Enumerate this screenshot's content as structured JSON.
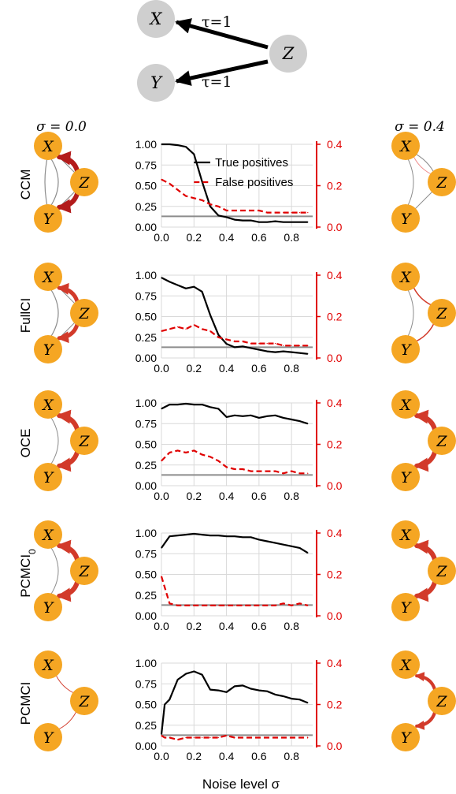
{
  "top_graph": {
    "nodes": [
      "X",
      "Y",
      "Z"
    ],
    "edges": [
      {
        "from": "Z",
        "to": "X",
        "label": "τ=1"
      },
      {
        "from": "Z",
        "to": "Y",
        "label": "τ=1"
      }
    ]
  },
  "col_labels": {
    "left": "σ = 0.0",
    "right": "σ = 0.4"
  },
  "xlabel": "Noise level σ",
  "legend": {
    "tp": "True positives",
    "fp": "False positives"
  },
  "colors": {
    "tp": "#000000",
    "fp": "#e00000",
    "node": "#f5a623",
    "arrow_dark": "#b31b1b",
    "arrow": "#d23a2a",
    "baseline": "#8c8c8c"
  },
  "chart_data": [
    {
      "type": "line",
      "method": "CCM",
      "x": [
        0.0,
        0.05,
        0.1,
        0.15,
        0.2,
        0.25,
        0.3,
        0.35,
        0.4,
        0.45,
        0.5,
        0.55,
        0.6,
        0.65,
        0.7,
        0.75,
        0.8,
        0.85,
        0.9
      ],
      "series": [
        {
          "name": "True positives",
          "axis": "left",
          "values": [
            1.0,
            1.0,
            0.99,
            0.97,
            0.88,
            0.55,
            0.25,
            0.14,
            0.12,
            0.09,
            0.08,
            0.08,
            0.06,
            0.06,
            0.07,
            0.06,
            0.06,
            0.06,
            0.06
          ]
        },
        {
          "name": "False positives",
          "axis": "right",
          "values": [
            0.23,
            0.21,
            0.18,
            0.15,
            0.14,
            0.13,
            0.11,
            0.1,
            0.08,
            0.08,
            0.08,
            0.08,
            0.08,
            0.07,
            0.07,
            0.07,
            0.07,
            0.07,
            0.07
          ]
        }
      ],
      "baseline": 0.13,
      "yticks_left": [
        "0.00",
        "0.25",
        "0.50",
        "0.75",
        "1.00"
      ],
      "ylim_left": [
        0,
        1
      ],
      "yticks_right": [
        "0.0",
        "0.2",
        "0.4"
      ],
      "ylim_right": [
        0,
        0.4
      ],
      "legend": "top-right"
    },
    {
      "type": "line",
      "method": "FullCI",
      "x": [
        0.0,
        0.05,
        0.1,
        0.15,
        0.2,
        0.25,
        0.3,
        0.35,
        0.4,
        0.45,
        0.5,
        0.55,
        0.6,
        0.65,
        0.7,
        0.75,
        0.8,
        0.85,
        0.9
      ],
      "series": [
        {
          "name": "True positives",
          "axis": "left",
          "values": [
            0.97,
            0.92,
            0.88,
            0.84,
            0.86,
            0.8,
            0.52,
            0.28,
            0.17,
            0.13,
            0.14,
            0.12,
            0.1,
            0.08,
            0.07,
            0.08,
            0.07,
            0.06,
            0.05
          ]
        },
        {
          "name": "False positives",
          "axis": "right",
          "values": [
            0.13,
            0.14,
            0.15,
            0.14,
            0.16,
            0.14,
            0.13,
            0.1,
            0.09,
            0.08,
            0.08,
            0.07,
            0.07,
            0.07,
            0.07,
            0.06,
            0.06,
            0.06,
            0.06
          ]
        }
      ],
      "baseline": 0.13,
      "yticks_left": [
        "0.00",
        "0.25",
        "0.50",
        "0.75",
        "1.00"
      ],
      "ylim_left": [
        0,
        1
      ],
      "yticks_right": [
        "0.0",
        "0.2",
        "0.4"
      ],
      "ylim_right": [
        0,
        0.4
      ]
    },
    {
      "type": "line",
      "method": "OCE",
      "x": [
        0.0,
        0.05,
        0.1,
        0.15,
        0.2,
        0.25,
        0.3,
        0.35,
        0.4,
        0.45,
        0.5,
        0.55,
        0.6,
        0.65,
        0.7,
        0.75,
        0.8,
        0.85,
        0.9
      ],
      "series": [
        {
          "name": "True positives",
          "axis": "left",
          "values": [
            0.93,
            0.98,
            0.98,
            0.99,
            0.98,
            0.98,
            0.95,
            0.93,
            0.83,
            0.85,
            0.84,
            0.85,
            0.82,
            0.84,
            0.85,
            0.82,
            0.8,
            0.78,
            0.75
          ]
        },
        {
          "name": "False positives",
          "axis": "right",
          "values": [
            0.12,
            0.16,
            0.17,
            0.16,
            0.17,
            0.15,
            0.14,
            0.12,
            0.09,
            0.08,
            0.08,
            0.07,
            0.07,
            0.07,
            0.07,
            0.06,
            0.07,
            0.06,
            0.06
          ]
        }
      ],
      "baseline": 0.13,
      "yticks_left": [
        "0.00",
        "0.25",
        "0.50",
        "0.75",
        "1.00"
      ],
      "ylim_left": [
        0,
        1
      ],
      "yticks_right": [
        "0.0",
        "0.2",
        "0.4"
      ],
      "ylim_right": [
        0,
        0.4
      ]
    },
    {
      "type": "line",
      "method": "PCMCI0",
      "x": [
        0.0,
        0.05,
        0.1,
        0.15,
        0.2,
        0.25,
        0.3,
        0.35,
        0.4,
        0.45,
        0.5,
        0.55,
        0.6,
        0.65,
        0.7,
        0.75,
        0.8,
        0.85,
        0.9
      ],
      "series": [
        {
          "name": "True positives",
          "axis": "left",
          "values": [
            0.82,
            0.96,
            0.97,
            0.98,
            0.99,
            0.98,
            0.97,
            0.97,
            0.96,
            0.96,
            0.95,
            0.95,
            0.92,
            0.9,
            0.88,
            0.86,
            0.84,
            0.82,
            0.76
          ]
        },
        {
          "name": "False positives",
          "axis": "right",
          "values": [
            0.19,
            0.06,
            0.05,
            0.05,
            0.05,
            0.05,
            0.05,
            0.05,
            0.05,
            0.05,
            0.05,
            0.05,
            0.05,
            0.05,
            0.05,
            0.06,
            0.05,
            0.06,
            0.05
          ]
        }
      ],
      "baseline": 0.13,
      "yticks_left": [
        "0.00",
        "0.25",
        "0.50",
        "0.75",
        "1.00"
      ],
      "ylim_left": [
        0,
        1
      ],
      "yticks_right": [
        "0.0",
        "0.2",
        "0.4"
      ],
      "ylim_right": [
        0,
        0.4
      ]
    },
    {
      "type": "line",
      "method": "PCMCI",
      "x": [
        0.0,
        0.02,
        0.05,
        0.1,
        0.15,
        0.2,
        0.25,
        0.3,
        0.35,
        0.4,
        0.45,
        0.5,
        0.55,
        0.6,
        0.65,
        0.7,
        0.75,
        0.8,
        0.85,
        0.9
      ],
      "series": [
        {
          "name": "True positives",
          "axis": "left",
          "values": [
            0.14,
            0.5,
            0.56,
            0.8,
            0.87,
            0.9,
            0.86,
            0.68,
            0.67,
            0.65,
            0.72,
            0.73,
            0.69,
            0.67,
            0.66,
            0.62,
            0.6,
            0.57,
            0.56,
            0.52
          ]
        },
        {
          "name": "False positives",
          "axis": "right",
          "values": [
            0.05,
            0.04,
            0.04,
            0.03,
            0.04,
            0.04,
            0.04,
            0.04,
            0.04,
            0.05,
            0.04,
            0.04,
            0.04,
            0.04,
            0.04,
            0.04,
            0.04,
            0.04,
            0.04,
            0.04
          ]
        }
      ],
      "baseline": 0.13,
      "yticks_left": [
        "0.00",
        "0.25",
        "0.50",
        "0.75",
        "1.00"
      ],
      "ylim_left": [
        0,
        1
      ],
      "yticks_right": [
        "0.0",
        "0.2",
        "0.4"
      ],
      "ylim_right": [
        0,
        0.4
      ],
      "xticks": [
        "0.0",
        "0.2",
        "0.4",
        "0.6",
        "0.8"
      ],
      "xlim": [
        0,
        0.93
      ]
    }
  ],
  "rows": [
    {
      "label": "CCM",
      "label_sub": "",
      "left": {
        "links": [
          {
            "a": "X",
            "b": "Y",
            "kind": "line",
            "w": 1.2,
            "c": "#8c8c8c",
            "curve": -26
          },
          {
            "a": "X",
            "b": "Y",
            "kind": "line",
            "w": 1.2,
            "c": "#8c8c8c",
            "curve": 8
          },
          {
            "a": "X",
            "b": "Z",
            "kind": "line",
            "w": 1.2,
            "c": "#8c8c8c",
            "curve": 0
          },
          {
            "a": "Z",
            "b": "Y",
            "kind": "line",
            "w": 1.2,
            "c": "#8c8c8c",
            "curve": 0
          },
          {
            "a": "Z",
            "b": "X",
            "kind": "arrow",
            "w": 6,
            "c": "#b31b1b",
            "curve": 14
          },
          {
            "a": "Z",
            "b": "Y",
            "kind": "arrow",
            "w": 6,
            "c": "#b31b1b",
            "curve": -14
          }
        ]
      },
      "right": {
        "links": [
          {
            "a": "X",
            "b": "Y",
            "kind": "line",
            "w": 1,
            "c": "#8c8c8c",
            "curve": -20
          },
          {
            "a": "X",
            "b": "Z",
            "kind": "line",
            "w": 1,
            "c": "#e88",
            "curve": 10
          },
          {
            "a": "X",
            "b": "Z",
            "kind": "line",
            "w": 1,
            "c": "#8c8c8c",
            "curve": -8
          },
          {
            "a": "Z",
            "b": "Y",
            "kind": "line",
            "w": 1,
            "c": "#8c8c8c",
            "curve": 0
          }
        ]
      }
    },
    {
      "label": "FullCI",
      "label_sub": "",
      "left": {
        "links": [
          {
            "a": "X",
            "b": "Y",
            "kind": "line",
            "w": 1.2,
            "c": "#8c8c8c",
            "curve": -26
          },
          {
            "a": "X",
            "b": "Z",
            "kind": "line",
            "w": 1,
            "c": "#8c8c8c",
            "curve": 0
          },
          {
            "a": "Z",
            "b": "Y",
            "kind": "line",
            "w": 1,
            "c": "#8c8c8c",
            "curve": 0
          },
          {
            "a": "Z",
            "b": "X",
            "kind": "arrow",
            "w": 5,
            "c": "#d23a2a",
            "curve": 14
          },
          {
            "a": "Z",
            "b": "Y",
            "kind": "arrow",
            "w": 5,
            "c": "#d23a2a",
            "curve": -14
          }
        ]
      },
      "right": {
        "links": [
          {
            "a": "X",
            "b": "Y",
            "kind": "line",
            "w": 1,
            "c": "#8c8c8c",
            "curve": -20
          },
          {
            "a": "X",
            "b": "Z",
            "kind": "line",
            "w": 1.5,
            "c": "#d23a2a",
            "curve": 10
          },
          {
            "a": "Z",
            "b": "Y",
            "kind": "line",
            "w": 1.5,
            "c": "#d23a2a",
            "curve": -10
          }
        ]
      }
    },
    {
      "label": "OCE",
      "label_sub": "",
      "left": {
        "links": [
          {
            "a": "X",
            "b": "Y",
            "kind": "line",
            "w": 1,
            "c": "#8c8c8c",
            "curve": -26
          },
          {
            "a": "Z",
            "b": "X",
            "kind": "arrow",
            "w": 6,
            "c": "#d23a2a",
            "curve": 14
          },
          {
            "a": "Z",
            "b": "Y",
            "kind": "arrow",
            "w": 6,
            "c": "#d23a2a",
            "curve": -14
          }
        ]
      },
      "right": {
        "links": [
          {
            "a": "Z",
            "b": "X",
            "kind": "arrow",
            "w": 6,
            "c": "#d23a2a",
            "curve": 14
          },
          {
            "a": "Z",
            "b": "Y",
            "kind": "arrow",
            "w": 6,
            "c": "#d23a2a",
            "curve": -14
          }
        ]
      }
    },
    {
      "label": "PCMCI",
      "label_sub": "0",
      "left": {
        "links": [
          {
            "a": "X",
            "b": "Y",
            "kind": "line",
            "w": 1,
            "c": "#8c8c8c",
            "curve": -26
          },
          {
            "a": "Z",
            "b": "X",
            "kind": "arrow",
            "w": 6,
            "c": "#d23a2a",
            "curve": 14
          },
          {
            "a": "Z",
            "b": "Y",
            "kind": "arrow",
            "w": 6,
            "c": "#d23a2a",
            "curve": -14
          }
        ]
      },
      "right": {
        "links": [
          {
            "a": "Z",
            "b": "X",
            "kind": "arrow",
            "w": 6,
            "c": "#d23a2a",
            "curve": 14
          },
          {
            "a": "Z",
            "b": "Y",
            "kind": "arrow",
            "w": 6,
            "c": "#d23a2a",
            "curve": -14
          }
        ]
      }
    },
    {
      "label": "PCMCI",
      "label_sub": "",
      "left": {
        "links": [
          {
            "a": "X",
            "b": "Z",
            "kind": "line",
            "w": 1,
            "c": "#d23a2a",
            "curve": 10
          },
          {
            "a": "Z",
            "b": "Y",
            "kind": "line",
            "w": 1,
            "c": "#d23a2a",
            "curve": -10
          }
        ]
      },
      "right": {
        "links": [
          {
            "a": "Z",
            "b": "X",
            "kind": "arrow",
            "w": 4,
            "c": "#d23a2a",
            "curve": 14
          },
          {
            "a": "Z",
            "b": "Y",
            "kind": "arrow",
            "w": 4,
            "c": "#d23a2a",
            "curve": -14
          }
        ]
      }
    }
  ]
}
